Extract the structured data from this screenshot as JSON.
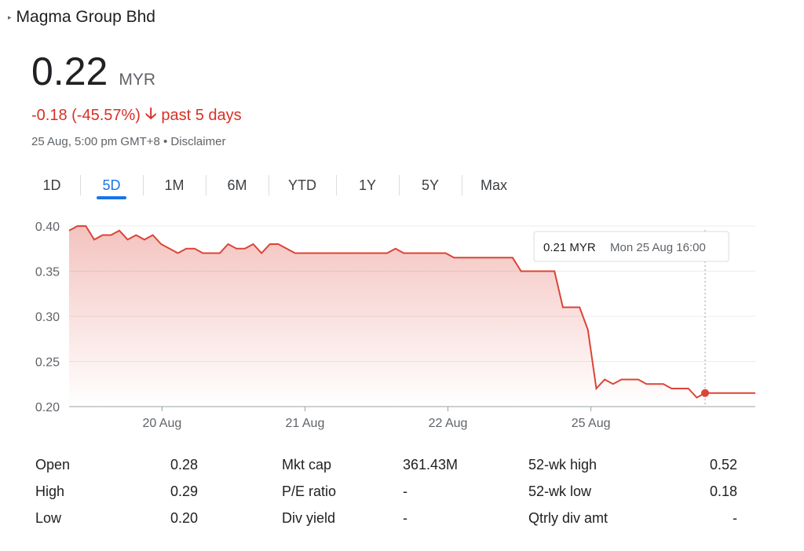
{
  "header": {
    "title": "Magma Group Bhd"
  },
  "quote": {
    "price": "0.22",
    "currency": "MYR",
    "change": "-0.18 (-45.57%)",
    "period": "past 5 days",
    "timestamp": "25 Aug, 5:00 pm GMT+8 • Disclaimer"
  },
  "tabs": [
    "1D",
    "5D",
    "1M",
    "6M",
    "YTD",
    "1Y",
    "5Y",
    "Max"
  ],
  "active_tab": "5D",
  "colors": {
    "line": "#db4437",
    "negative": "#d93025",
    "accent": "#1a73e8"
  },
  "chart_data": {
    "type": "area",
    "ylim": [
      0.2,
      0.4
    ],
    "y_ticks": [
      "0.40",
      "0.35",
      "0.30",
      "0.25",
      "0.20"
    ],
    "x_ticks": [
      "20 Aug",
      "21 Aug",
      "22 Aug",
      "25 Aug"
    ],
    "x_tick_positions": [
      6.5,
      16.5,
      26.5,
      36.5
    ],
    "x_range": [
      0,
      48
    ],
    "grid": true,
    "series": [
      {
        "x": [
          0,
          1,
          2,
          3,
          4,
          5,
          6,
          7,
          8,
          9,
          10,
          11,
          12,
          13,
          14,
          15,
          16,
          17,
          18,
          19,
          20,
          21,
          22,
          23,
          24,
          25,
          26,
          27,
          28,
          29,
          30,
          31,
          32,
          33,
          34,
          35,
          36,
          37,
          38,
          39,
          40,
          41,
          42,
          43,
          44,
          45,
          46,
          47,
          48
        ],
        "values": [
          0.395,
          0.4,
          0.4,
          0.385,
          0.39,
          0.39,
          0.395,
          0.385,
          0.39,
          0.385,
          0.39,
          0.38,
          0.375,
          0.37,
          0.375,
          0.375,
          0.37,
          0.37,
          0.37,
          0.38,
          0.375,
          0.375,
          0.38,
          0.37,
          0.38,
          0.38,
          0.375,
          0.37,
          0.37,
          0.37,
          0.37,
          0.37,
          0.37,
          0.37,
          0.37,
          0.37,
          0.37,
          0.37,
          0.37,
          0.375,
          0.37,
          0.37,
          0.37,
          0.37,
          0.37,
          0.37,
          0.365,
          0.365,
          0.365
        ],
        "x_extra": [
          49,
          50,
          51,
          52,
          53,
          54,
          55,
          56,
          57,
          58,
          59,
          60,
          61,
          62,
          63,
          64,
          65,
          66,
          67,
          68,
          69,
          70,
          71,
          72,
          73,
          74,
          75,
          76,
          77,
          78,
          79,
          80,
          81,
          82
        ],
        "values_extra": [
          0.365,
          0.365,
          0.365,
          0.365,
          0.365,
          0.35,
          0.35,
          0.35,
          0.35,
          0.35,
          0.31,
          0.31,
          0.31,
          0.285,
          0.22,
          0.23,
          0.225,
          0.23,
          0.23,
          0.23,
          0.225,
          0.225,
          0.225,
          0.22,
          0.22,
          0.22,
          0.21,
          0.215,
          0.215,
          0.215,
          0.215,
          0.215,
          0.215,
          0.215
        ]
      }
    ],
    "tooltip": {
      "value": "0.21 MYR",
      "time": "Mon 25 Aug 16:00",
      "index": 76
    }
  },
  "stats": [
    {
      "label": "Open",
      "value": "0.28",
      "label2": "Mkt cap",
      "value2": "361.43M",
      "label3": "52-wk high",
      "value3": "0.52"
    },
    {
      "label": "High",
      "value": "0.29",
      "label2": "P/E ratio",
      "value2": "-",
      "label3": "52-wk low",
      "value3": "0.18"
    },
    {
      "label": "Low",
      "value": "0.20",
      "label2": "Div yield",
      "value2": "-",
      "label3": "Qtrly div amt",
      "value3": "-"
    }
  ]
}
